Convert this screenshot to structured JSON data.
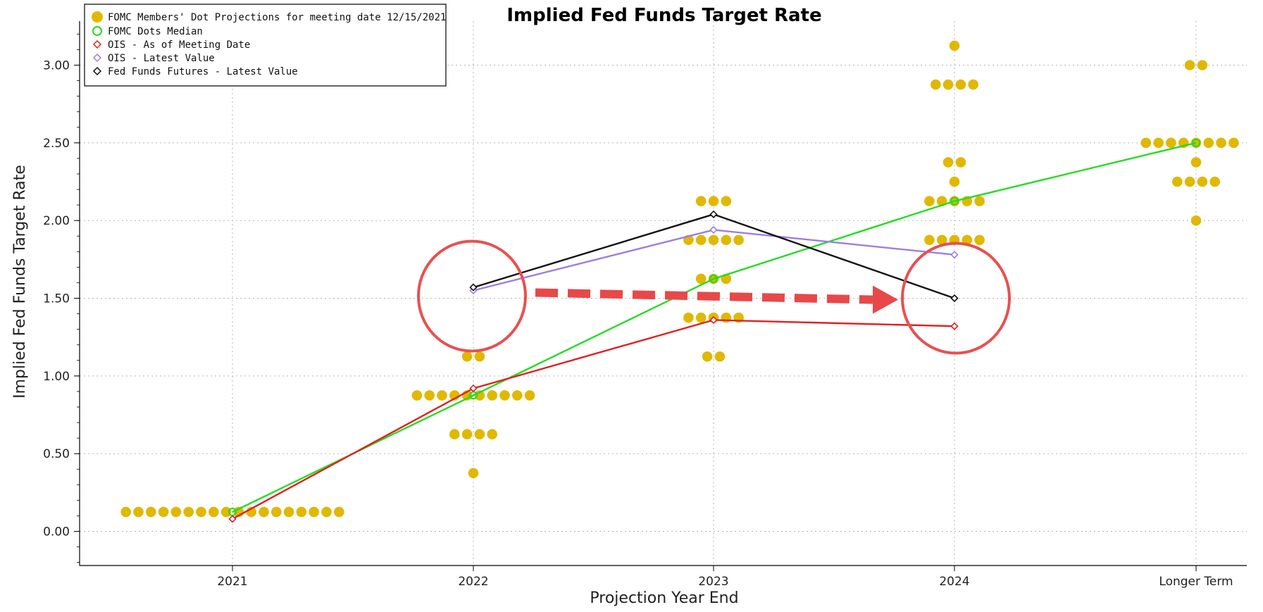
{
  "chart_data": {
    "type": "scatter",
    "title": "Implied Fed Funds Target Rate",
    "xlabel": "Projection Year End",
    "ylabel": "Implied Fed Funds Target Rate",
    "categories": [
      "2021",
      "2022",
      "2023",
      "2024",
      "Longer Term"
    ],
    "ylim": [
      -0.22,
      3.4
    ],
    "yticks": [
      "0.00",
      "0.50",
      "1.00",
      "1.50",
      "2.00",
      "2.50",
      "3.00"
    ],
    "grid": true,
    "legend_position": "top-left",
    "legend": [
      {
        "label": "FOMC Members' Dot Projections for meeting date 12/15/2021",
        "marker": "filled-circle",
        "color": "#e0b800"
      },
      {
        "label": "FOMC Dots Median",
        "marker": "hollow-circle",
        "color": "#22dd22"
      },
      {
        "label": "OIS - As of Meeting Date",
        "marker": "hollow-diamond",
        "color": "#e02020"
      },
      {
        "label": "OIS - Latest Value",
        "marker": "hollow-diamond",
        "color": "#9b7fe0"
      },
      {
        "label": "Fed Funds Futures - Latest Value",
        "marker": "hollow-diamond",
        "color": "#111111"
      }
    ],
    "dots": [
      {
        "category": "2021",
        "counts": [
          {
            "value": 0.125,
            "count": 18
          }
        ]
      },
      {
        "category": "2022",
        "counts": [
          {
            "value": 0.375,
            "count": 1
          },
          {
            "value": 0.625,
            "count": 4
          },
          {
            "value": 0.875,
            "count": 10
          },
          {
            "value": 1.125,
            "count": 2
          }
        ]
      },
      {
        "category": "2023",
        "counts": [
          {
            "value": 1.125,
            "count": 2
          },
          {
            "value": 1.375,
            "count": 5
          },
          {
            "value": 1.625,
            "count": 3
          },
          {
            "value": 1.875,
            "count": 5
          },
          {
            "value": 2.125,
            "count": 3
          }
        ]
      },
      {
        "category": "2024",
        "counts": [
          {
            "value": 1.875,
            "count": 5
          },
          {
            "value": 2.125,
            "count": 5
          },
          {
            "value": 2.25,
            "count": 1
          },
          {
            "value": 2.375,
            "count": 2
          },
          {
            "value": 2.875,
            "count": 4
          },
          {
            "value": 3.125,
            "count": 1
          }
        ]
      },
      {
        "category": "Longer Term",
        "counts": [
          {
            "value": 2.0,
            "count": 1
          },
          {
            "value": 2.25,
            "count": 4
          },
          {
            "value": 2.375,
            "count": 1
          },
          {
            "value": 2.5,
            "count": 9
          },
          {
            "value": 3.0,
            "count": 2
          }
        ]
      }
    ],
    "series": [
      {
        "name": "FOMC Dots Median",
        "color": "#22dd22",
        "marker": "circle",
        "categories": [
          "2021",
          "2022",
          "2023",
          "2024",
          "Longer Term"
        ],
        "values": [
          0.125,
          0.875,
          1.625,
          2.125,
          2.5
        ]
      },
      {
        "name": "OIS - As of Meeting Date",
        "color": "#e02020",
        "marker": "diamond",
        "categories": [
          "2021",
          "2022",
          "2023",
          "2024"
        ],
        "values": [
          0.08,
          0.92,
          1.36,
          1.32
        ]
      },
      {
        "name": "OIS - Latest Value",
        "color": "#9b7fe0",
        "marker": "diamond",
        "categories": [
          "2022",
          "2023",
          "2024"
        ],
        "values": [
          1.55,
          1.94,
          1.78
        ]
      },
      {
        "name": "Fed Funds Futures - Latest Value",
        "color": "#111111",
        "marker": "diamond",
        "categories": [
          "2022",
          "2023",
          "2024"
        ],
        "values": [
          1.57,
          2.04,
          1.5
        ]
      }
    ],
    "annotations": [
      {
        "type": "circle",
        "category": "2022",
        "value": 1.55,
        "color": "#e85050"
      },
      {
        "type": "circle",
        "category": "2024",
        "value": 1.5,
        "color": "#e85050"
      },
      {
        "type": "dashed-arrow",
        "from_category": "2022",
        "to_category": "2024",
        "value": 1.55,
        "color": "#e84848"
      }
    ]
  }
}
